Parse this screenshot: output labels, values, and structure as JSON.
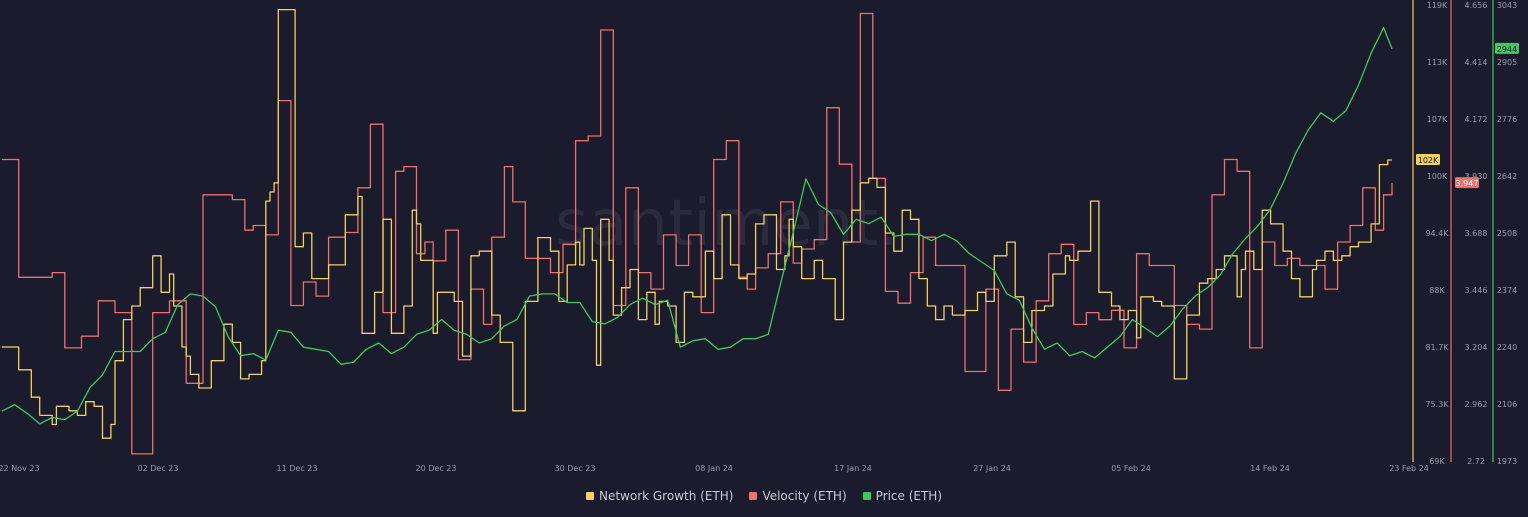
{
  "watermark": "santiment.",
  "colors": {
    "background": "#1a1b2c",
    "network_growth": "#f3d061",
    "velocity": "#ef6e6e",
    "price": "#3ec95a",
    "axis_text": "#9a9aaa"
  },
  "chart_data": {
    "type": "line",
    "x_labels": [
      "22 Nov 23",
      "02 Dec 23",
      "11 Dec 23",
      "20 Dec 23",
      "30 Dec 23",
      "08 Jan 24",
      "17 Jan 24",
      "27 Jan 24",
      "05 Feb 24",
      "14 Feb 24",
      "23 Feb 24"
    ],
    "x_range": [
      "22 Nov 23",
      "23 Feb 24"
    ],
    "axes": [
      {
        "id": "network_growth",
        "ticks": [
          "119K",
          "113K",
          "107K",
          "100K",
          "94.4K",
          "88K",
          "81.7K",
          "75.3K",
          "69K"
        ],
        "range": [
          69000,
          119000
        ],
        "current_value_label": "102K"
      },
      {
        "id": "velocity",
        "ticks": [
          "4.656",
          "4.414",
          "4.172",
          "3.930",
          "3.688",
          "3.446",
          "3.204",
          "2.962",
          "2.72"
        ],
        "range": [
          2.72,
          4.656
        ],
        "current_value_label": "3.947"
      },
      {
        "id": "price",
        "ticks": [
          "3043",
          "2905",
          "2776",
          "2642",
          "2508",
          "2374",
          "2240",
          "2106",
          "1973"
        ],
        "range": [
          1973,
          3043
        ],
        "current_value_label": "2944"
      }
    ],
    "series": [
      {
        "name": "Network Growth (ETH)",
        "axis": "network_growth",
        "shape": "step",
        "x": [
          0,
          4,
          7,
          9,
          12,
          13,
          16,
          18,
          20,
          22,
          24,
          26,
          27,
          29,
          31,
          33,
          36,
          38,
          40,
          41,
          43,
          44,
          45,
          47,
          50,
          53,
          55,
          57,
          59,
          62,
          63,
          64,
          65,
          66,
          70,
          72,
          74,
          78,
          82,
          85,
          86,
          89,
          91,
          93,
          96,
          98,
          99,
          100,
          103,
          104,
          108,
          110,
          112,
          114,
          117,
          119,
          122,
          125,
          128,
          131,
          133,
          135,
          137,
          138,
          139,
          141,
          142,
          143,
          145,
          146,
          148,
          150,
          152,
          154,
          156,
          157,
          159,
          161,
          163,
          165,
          168,
          170,
          172,
          174,
          176,
          178,
          180,
          182,
          185,
          187,
          188,
          189,
          191,
          194,
          196,
          199,
          201,
          203,
          205,
          207,
          209,
          211,
          213,
          215,
          217,
          219,
          221,
          223,
          225,
          227,
          230,
          233,
          235,
          237,
          240,
          242,
          244,
          246,
          249,
          251,
          254,
          255,
          257,
          260,
          262,
          265,
          267,
          269,
          271,
          272,
          275,
          277,
          280,
          283,
          286,
          288,
          290,
          292,
          295,
          296,
          297,
          299,
          301,
          303,
          306,
          308,
          310,
          313,
          314,
          316,
          318,
          320,
          322,
          324,
          327,
          329,
          331,
          332
        ],
        "values": [
          81500,
          79000,
          76000,
          74000,
          73000,
          75000,
          74500,
          74000,
          75500,
          75000,
          71500,
          73000,
          80000,
          84500,
          86000,
          88000,
          91500,
          87500,
          89500,
          86000,
          81500,
          80500,
          78500,
          77000,
          80000,
          84000,
          82000,
          78000,
          78500,
          80000,
          97500,
          98500,
          99500,
          118500,
          92500,
          94000,
          89000,
          90500,
          96000,
          98000,
          83000,
          87500,
          95500,
          83000,
          86000,
          96500,
          95000,
          91000,
          83000,
          87500,
          86500,
          80500,
          91500,
          92000,
          85000,
          82000,
          74500,
          86500,
          93500,
          92000,
          86500,
          90500,
          93000,
          90500,
          94500,
          91000,
          79500,
          95500,
          91000,
          85000,
          88000,
          90000,
          84500,
          87500,
          84000,
          86500,
          86000,
          82000,
          87500,
          87000,
          92000,
          89000,
          96000,
          90500,
          89000,
          89500,
          95000,
          96000,
          90000,
          91500,
          95500,
          92500,
          89000,
          91000,
          89000,
          84500,
          93000,
          96500,
          99500,
          100000,
          99000,
          94000,
          92000,
          96500,
          95500,
          89000,
          86000,
          84500,
          86000,
          85000,
          85500,
          87500,
          86500,
          91500,
          93000,
          87000,
          82000,
          85500,
          86000,
          89500,
          91500,
          91000,
          92000,
          97500,
          87500,
          86000,
          84500,
          85500,
          82500,
          87000,
          86500,
          86000,
          78000,
          85000,
          88500,
          89000,
          90000,
          91500,
          87000,
          90000,
          92000,
          90000,
          96500,
          95000,
          92000,
          89000,
          87000,
          90000,
          91000,
          92000,
          91000,
          91500,
          92500,
          93000,
          95000,
          101500,
          102000,
          102000
        ]
      },
      {
        "name": "Velocity (ETH)",
        "axis": "velocity",
        "shape": "step",
        "x": [
          0,
          4,
          7,
          12,
          15,
          19,
          23,
          27,
          31,
          36,
          40,
          44,
          48,
          51,
          55,
          58,
          60,
          63,
          66,
          69,
          72,
          75,
          78,
          82,
          85,
          88,
          91,
          94,
          96,
          99,
          101,
          103,
          106,
          109,
          112,
          115,
          117,
          120,
          122,
          125,
          128,
          131,
          134,
          137,
          140,
          143,
          146,
          149,
          152,
          155,
          158,
          161,
          164,
          167,
          170,
          173,
          176,
          178,
          180,
          183,
          186,
          189,
          191,
          194,
          197,
          200,
          203,
          205,
          208,
          211,
          214,
          217,
          220,
          223,
          227,
          230,
          233,
          235,
          238,
          241,
          244,
          247,
          250,
          253,
          256,
          259,
          262,
          265,
          268,
          271,
          274,
          277,
          280,
          283,
          286,
          289,
          292,
          295,
          298,
          301,
          304,
          307,
          310,
          313,
          316,
          319,
          322,
          325,
          328,
          330,
          332
        ],
        "values": [
          4.0,
          3.5,
          3.5,
          3.52,
          3.2,
          3.25,
          3.4,
          3.35,
          2.75,
          3.35,
          3.4,
          3.05,
          3.85,
          3.85,
          3.83,
          3.7,
          3.72,
          3.68,
          4.25,
          3.38,
          3.48,
          3.42,
          3.67,
          3.69,
          3.88,
          4.15,
          3.35,
          3.95,
          3.97,
          3.6,
          3.65,
          3.57,
          3.7,
          3.15,
          3.45,
          3.3,
          3.67,
          3.97,
          3.82,
          3.58,
          3.58,
          3.52,
          3.64,
          4.08,
          4.1,
          4.55,
          3.38,
          3.88,
          3.52,
          3.45,
          3.68,
          3.55,
          3.68,
          3.35,
          4.0,
          4.08,
          3.5,
          3.45,
          3.54,
          3.6,
          3.82,
          3.56,
          3.62,
          3.66,
          4.22,
          3.98,
          3.65,
          4.62,
          3.92,
          3.44,
          3.39,
          3.52,
          3.67,
          3.55,
          3.55,
          3.1,
          3.1,
          3.45,
          3.02,
          3.28,
          3.14,
          3.4,
          3.6,
          3.64,
          3.3,
          3.35,
          3.32,
          3.36,
          3.2,
          3.6,
          3.55,
          3.55,
          3.38,
          3.3,
          3.28,
          3.85,
          4.0,
          3.95,
          3.2,
          3.65,
          3.55,
          3.58,
          3.55,
          3.55,
          3.45,
          3.65,
          3.72,
          3.88,
          3.7,
          3.85,
          3.9
        ]
      },
      {
        "name": "Price (ETH)",
        "axis": "price",
        "shape": "line",
        "x": [
          0,
          3,
          6,
          9,
          12,
          15,
          18,
          21,
          24,
          27,
          30,
          33,
          36,
          39,
          42,
          45,
          48,
          51,
          54,
          57,
          60,
          63,
          66,
          69,
          72,
          75,
          78,
          81,
          84,
          87,
          90,
          93,
          96,
          99,
          102,
          105,
          108,
          111,
          114,
          117,
          120,
          123,
          126,
          129,
          132,
          135,
          138,
          141,
          144,
          147,
          150,
          153,
          156,
          159,
          162,
          165,
          168,
          171,
          174,
          177,
          180,
          183,
          186,
          189,
          192,
          195,
          198,
          201,
          204,
          207,
          210,
          213,
          216,
          219,
          222,
          225,
          228,
          231,
          234,
          237,
          240,
          243,
          246,
          249,
          252,
          255,
          258,
          261,
          264,
          267,
          270,
          273,
          276,
          279,
          282,
          285,
          288,
          291,
          294,
          297,
          300,
          303,
          306,
          309,
          312,
          315,
          318,
          321,
          324,
          327,
          330,
          332
        ],
        "values": [
          2090,
          2105,
          2085,
          2060,
          2075,
          2070,
          2090,
          2145,
          2175,
          2230,
          2230,
          2230,
          2260,
          2275,
          2340,
          2365,
          2360,
          2335,
          2265,
          2220,
          2225,
          2210,
          2280,
          2275,
          2240,
          2235,
          2230,
          2200,
          2205,
          2235,
          2250,
          2225,
          2240,
          2270,
          2280,
          2305,
          2280,
          2270,
          2250,
          2260,
          2290,
          2305,
          2360,
          2365,
          2365,
          2345,
          2345,
          2300,
          2295,
          2310,
          2340,
          2355,
          2340,
          2350,
          2240,
          2255,
          2260,
          2235,
          2240,
          2260,
          2260,
          2270,
          2390,
          2510,
          2635,
          2575,
          2555,
          2505,
          2540,
          2530,
          2545,
          2500,
          2505,
          2505,
          2490,
          2505,
          2490,
          2460,
          2440,
          2420,
          2365,
          2350,
          2285,
          2235,
          2250,
          2220,
          2230,
          2215,
          2240,
          2265,
          2305,
          2285,
          2265,
          2290,
          2330,
          2360,
          2380,
          2410,
          2460,
          2495,
          2525,
          2565,
          2625,
          2695,
          2750,
          2790,
          2770,
          2795,
          2855,
          2930,
          2990,
          2940
        ]
      }
    ]
  }
}
